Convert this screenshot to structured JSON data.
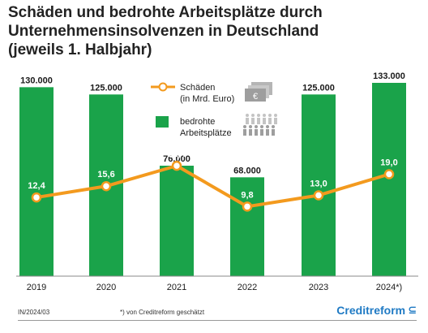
{
  "title_lines": [
    "Schäden und bedrohte Arbeitsplätze durch",
    "Unternehmensinsolvenzen in Deutschland",
    "(jeweils 1. Halbjahr)"
  ],
  "legend": {
    "line_label_1": "Schäden",
    "line_label_2": "(in Mrd. Euro)",
    "bar_label_1": "bedrohte",
    "bar_label_2": "Arbeitsplätze"
  },
  "footer": {
    "code": "IN/2024/03",
    "note": "*) von Creditreform geschätzt",
    "brand": "Creditreform"
  },
  "colors": {
    "bar": "#1aa34a",
    "line": "#f39a1e",
    "text": "#1a1a1a"
  },
  "chart_data": {
    "type": "bar",
    "categories": [
      "2019",
      "2020",
      "2021",
      "2022",
      "2023",
      "2024*)"
    ],
    "series": [
      {
        "name": "bedrohte Arbeitsplätze",
        "type": "bar",
        "values": [
          130000,
          125000,
          76000,
          68000,
          125000,
          133000
        ],
        "labels": [
          "130.000",
          "125.000",
          "76.000",
          "68.000",
          "125.000",
          "133.000"
        ]
      },
      {
        "name": "Schäden (in Mrd. Euro)",
        "type": "line",
        "values": [
          12.4,
          15.6,
          21.4,
          9.8,
          13.0,
          19.0
        ],
        "labels": [
          "12,4",
          "15,6",
          "21,4",
          "9,8",
          "13,0",
          "19,0"
        ]
      }
    ],
    "bar_ylim": [
      0,
      133000
    ],
    "line_ylim": [
      -10,
      45
    ],
    "grid": false,
    "legend_position": "top-center"
  }
}
